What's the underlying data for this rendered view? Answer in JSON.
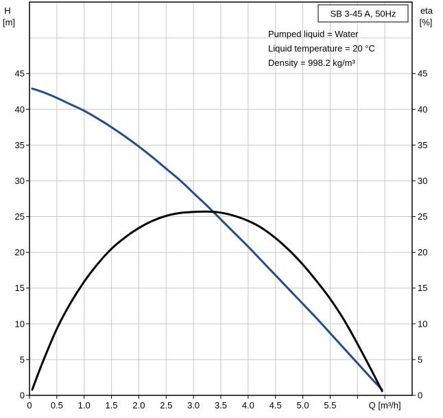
{
  "chart_data": {
    "type": "line",
    "title_box": "SB 3-45 A, 50Hz",
    "conditions": [
      "Pumped liquid = Water",
      "Liquid temperature = 20 °C",
      "Density = 998.2 kg/m³"
    ],
    "left_axis": {
      "label_line1": "H",
      "label_line2": "[m]",
      "range": [
        0,
        55
      ],
      "tick_values": [
        0,
        5,
        10,
        15,
        20,
        25,
        30,
        35,
        40,
        45
      ],
      "tick_labels": [
        "0",
        "5",
        "10",
        "15",
        "20",
        "25",
        "30",
        "35",
        "40",
        "45"
      ]
    },
    "right_axis": {
      "label_line1": "eta",
      "label_line2": "[%]",
      "range": [
        0,
        55
      ],
      "tick_values": [
        0,
        5,
        10,
        15,
        20,
        25,
        30,
        35,
        40,
        45
      ],
      "tick_labels": [
        "0",
        "5",
        "10",
        "15",
        "20",
        "25",
        "30",
        "35",
        "40",
        "45"
      ]
    },
    "x_axis": {
      "label": "Q [m³/h]",
      "range": [
        0,
        7.0
      ],
      "tick_values": [
        0,
        0.5,
        1.0,
        1.5,
        2.0,
        2.5,
        3.0,
        3.5,
        4.0,
        4.5,
        5.0,
        5.5
      ],
      "tick_labels": [
        "0",
        "0.5",
        "1.0",
        "1.5",
        "2.0",
        "2.5",
        "3.0",
        "3.5",
        "4.0",
        "4.5",
        "5.0",
        "5.5"
      ],
      "label_at": 6.5
    },
    "grid": true,
    "series": [
      {
        "axis": "left",
        "color": "#1f4e8c",
        "points": [
          [
            0.05,
            42.9
          ],
          [
            0.25,
            42.4
          ],
          [
            0.5,
            41.6
          ],
          [
            0.75,
            40.7
          ],
          [
            1.0,
            39.8
          ],
          [
            1.25,
            38.7
          ],
          [
            1.5,
            37.5
          ],
          [
            1.75,
            36.2
          ],
          [
            2.0,
            34.8
          ],
          [
            2.25,
            33.3
          ],
          [
            2.5,
            31.7
          ],
          [
            2.75,
            30.1
          ],
          [
            3.0,
            28.3
          ],
          [
            3.25,
            26.5
          ],
          [
            3.5,
            24.6
          ],
          [
            3.75,
            22.7
          ],
          [
            4.0,
            20.8
          ],
          [
            4.25,
            18.8
          ],
          [
            4.5,
            16.8
          ],
          [
            4.75,
            14.8
          ],
          [
            5.0,
            12.8
          ],
          [
            5.25,
            10.8
          ],
          [
            5.5,
            8.7
          ],
          [
            5.75,
            6.6
          ],
          [
            6.0,
            4.5
          ],
          [
            6.25,
            2.4
          ],
          [
            6.45,
            0.8
          ]
        ]
      },
      {
        "axis": "right",
        "color": "#000000",
        "points": [
          [
            0.05,
            0.8
          ],
          [
            0.25,
            4.8
          ],
          [
            0.5,
            9.3
          ],
          [
            0.75,
            12.9
          ],
          [
            1.0,
            15.9
          ],
          [
            1.25,
            18.4
          ],
          [
            1.5,
            20.5
          ],
          [
            1.75,
            22.1
          ],
          [
            2.0,
            23.4
          ],
          [
            2.25,
            24.4
          ],
          [
            2.5,
            25.1
          ],
          [
            2.75,
            25.5
          ],
          [
            3.0,
            25.65
          ],
          [
            3.25,
            25.7
          ],
          [
            3.5,
            25.55
          ],
          [
            3.75,
            25.1
          ],
          [
            4.0,
            24.4
          ],
          [
            4.25,
            23.4
          ],
          [
            4.5,
            22.0
          ],
          [
            4.75,
            20.3
          ],
          [
            5.0,
            18.3
          ],
          [
            5.25,
            16.0
          ],
          [
            5.5,
            13.5
          ],
          [
            5.75,
            10.6
          ],
          [
            6.0,
            7.2
          ],
          [
            6.25,
            3.6
          ],
          [
            6.45,
            0.6
          ]
        ]
      }
    ]
  }
}
